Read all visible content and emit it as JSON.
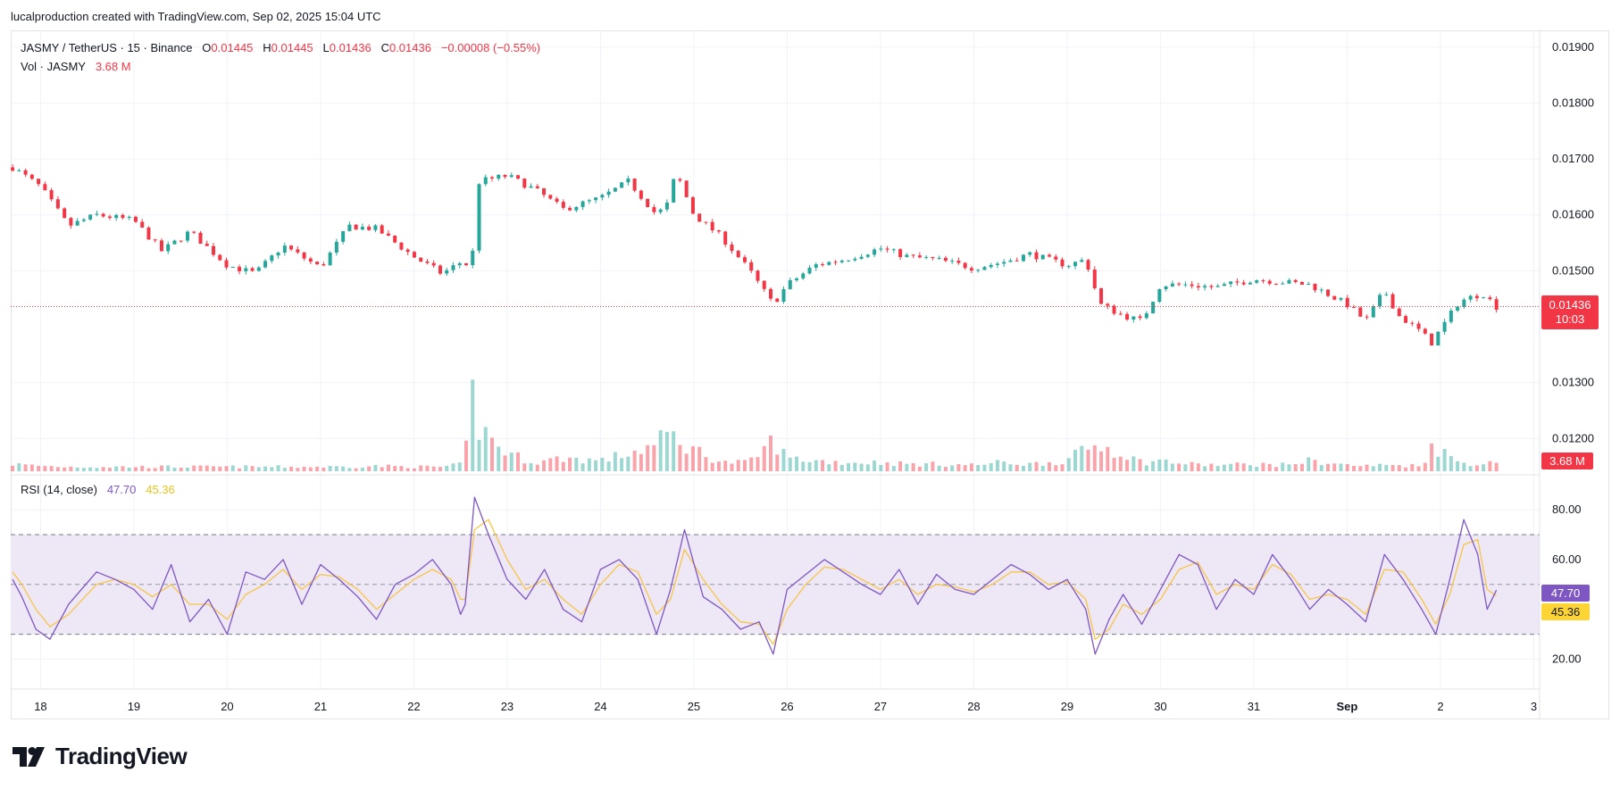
{
  "header": {
    "caption": "lucalproduction created with TradingView.com, Sep 02, 2025 15:04 UTC"
  },
  "legend": {
    "symbol": "JASMY / TetherUS · 15 · Binance",
    "o_label": "O",
    "o_value": "0.01445",
    "h_label": "H",
    "h_value": "0.01445",
    "l_label": "L",
    "l_value": "0.01436",
    "c_label": "C",
    "c_value": "0.01436",
    "change": "−0.00008 (−0.55%)",
    "vol_label": "Vol · JASMY",
    "vol_value": "3.68 M",
    "rsi_label": "RSI (14, close)",
    "rsi_value": "47.70",
    "rsi_ma_value": "45.36"
  },
  "badges": {
    "last_price": "0.01436",
    "countdown": "10:03",
    "volume": "3.68 M",
    "rsi": "47.70",
    "rsi_ma": "45.36"
  },
  "colors": {
    "up": "#26a69a",
    "down": "#f23645",
    "rsi_line": "#7e57c2",
    "rsi_ma": "#f7c548",
    "rsi_band": "#ede7f6",
    "grid": "#f0f3fa"
  },
  "brand": {
    "name": "TradingView",
    "icon": "tradingview-logo-icon"
  },
  "chart_data": [
    {
      "type": "candlestick",
      "title": "JASMY / TetherUS · 15 · Binance",
      "x_tick_labels": [
        "18",
        "19",
        "20",
        "21",
        "22",
        "23",
        "24",
        "25",
        "26",
        "27",
        "28",
        "29",
        "30",
        "31",
        "Sep",
        "2",
        "3"
      ],
      "y_tick_labels": [
        "0.01900",
        "0.01800",
        "0.01700",
        "0.01600",
        "0.01500",
        "0.01300",
        "0.01200"
      ],
      "y_ticks": [
        0.019,
        0.018,
        0.017,
        0.016,
        0.015,
        0.013,
        0.012
      ],
      "ylim": [
        0.01135,
        0.0193
      ],
      "last_price": 0.01436,
      "x_days": [
        17.7,
        18,
        18.3,
        18.6,
        19,
        19.3,
        19.6,
        20,
        20.3,
        20.6,
        21,
        21.3,
        21.6,
        22,
        22.3,
        22.55,
        22.6,
        22.7,
        23,
        23.3,
        23.6,
        24,
        24.3,
        24.6,
        24.75,
        24.8,
        25,
        25.3,
        25.6,
        25.85,
        26,
        26.3,
        26.6,
        27,
        27.3,
        27.6,
        28,
        28.3,
        28.6,
        29,
        29.2,
        29.35,
        29.6,
        29.8,
        30,
        30.3,
        30.6,
        31,
        31.3,
        31.6,
        32,
        32.2,
        32.4,
        32.55,
        32.8,
        32.9,
        33.2,
        33.45,
        33.6
      ],
      "close": [
        0.01685,
        0.0165,
        0.0158,
        0.016,
        0.0159,
        0.01535,
        0.0157,
        0.0151,
        0.01495,
        0.01545,
        0.01505,
        0.0158,
        0.01575,
        0.01525,
        0.01495,
        0.0152,
        0.0148,
        0.0166,
        0.0167,
        0.01645,
        0.0161,
        0.0163,
        0.0166,
        0.016,
        0.01625,
        0.0168,
        0.016,
        0.0156,
        0.015,
        0.0144,
        0.01475,
        0.0151,
        0.0152,
        0.0154,
        0.01525,
        0.0152,
        0.01505,
        0.01515,
        0.0153,
        0.0151,
        0.0152,
        0.0144,
        0.0142,
        0.0141,
        0.01475,
        0.01475,
        0.0147,
        0.01485,
        0.0148,
        0.01475,
        0.0144,
        0.0141,
        0.01465,
        0.0142,
        0.0139,
        0.0137,
        0.01445,
        0.0146,
        0.01436
      ],
      "volume_relative": [
        0.08,
        0.06,
        0.05,
        0.05,
        0.05,
        0.05,
        0.05,
        0.05,
        0.05,
        0.05,
        0.05,
        0.05,
        0.06,
        0.05,
        0.05,
        0.08,
        1.0,
        0.5,
        0.2,
        0.1,
        0.15,
        0.12,
        0.2,
        0.3,
        0.45,
        0.35,
        0.25,
        0.1,
        0.1,
        0.35,
        0.15,
        0.12,
        0.1,
        0.1,
        0.08,
        0.08,
        0.07,
        0.1,
        0.08,
        0.12,
        0.25,
        0.3,
        0.2,
        0.1,
        0.12,
        0.08,
        0.07,
        0.08,
        0.07,
        0.12,
        0.07,
        0.06,
        0.07,
        0.07,
        0.06,
        0.3,
        0.1,
        0.08,
        0.1
      ]
    },
    {
      "type": "line",
      "title": "RSI (14, close)",
      "y_tick_labels": [
        "80.00",
        "60.00",
        "20.00"
      ],
      "y_ticks": [
        80,
        60,
        20
      ],
      "ylim": [
        8,
        94
      ],
      "bands": [
        30,
        50,
        70
      ],
      "x_days": [
        17.7,
        17.8,
        17.95,
        18.1,
        18.3,
        18.6,
        18.8,
        19,
        19.2,
        19.4,
        19.6,
        19.8,
        20,
        20.2,
        20.4,
        20.6,
        20.8,
        21,
        21.2,
        21.4,
        21.6,
        21.8,
        22,
        22.2,
        22.4,
        22.5,
        22.55,
        22.65,
        22.8,
        23,
        23.2,
        23.4,
        23.6,
        23.8,
        24,
        24.2,
        24.4,
        24.6,
        24.75,
        24.9,
        25.1,
        25.3,
        25.5,
        25.7,
        25.85,
        26,
        26.2,
        26.4,
        26.6,
        26.8,
        27,
        27.2,
        27.4,
        27.6,
        27.8,
        28,
        28.2,
        28.4,
        28.6,
        28.8,
        29,
        29.2,
        29.3,
        29.45,
        29.6,
        29.8,
        30,
        30.2,
        30.4,
        30.6,
        30.8,
        31,
        31.2,
        31.4,
        31.6,
        31.8,
        32,
        32.2,
        32.4,
        32.6,
        32.8,
        32.95,
        33.1,
        33.25,
        33.4,
        33.5,
        33.6
      ],
      "rsi": [
        52,
        45,
        32,
        28,
        42,
        55,
        52,
        48,
        40,
        58,
        35,
        44,
        30,
        55,
        52,
        60,
        42,
        58,
        52,
        45,
        36,
        50,
        54,
        60,
        50,
        38,
        42,
        85,
        70,
        52,
        44,
        56,
        40,
        35,
        56,
        60,
        52,
        30,
        48,
        72,
        45,
        40,
        32,
        35,
        22,
        48,
        54,
        60,
        55,
        50,
        46,
        56,
        42,
        54,
        48,
        46,
        52,
        58,
        54,
        48,
        52,
        40,
        22,
        36,
        46,
        34,
        48,
        62,
        58,
        40,
        52,
        46,
        62,
        52,
        40,
        48,
        42,
        35,
        62,
        52,
        40,
        30,
        52,
        76,
        62,
        40,
        47.7
      ],
      "rsi_ma": [
        55,
        50,
        40,
        33,
        38,
        50,
        52,
        50,
        45,
        50,
        42,
        42,
        36,
        46,
        50,
        56,
        48,
        54,
        53,
        48,
        40,
        46,
        52,
        56,
        52,
        44,
        44,
        72,
        76,
        60,
        48,
        52,
        44,
        38,
        50,
        58,
        55,
        38,
        44,
        64,
        52,
        42,
        35,
        34,
        26,
        40,
        50,
        57,
        56,
        52,
        48,
        52,
        46,
        50,
        49,
        47,
        50,
        55,
        55,
        50,
        51,
        44,
        28,
        32,
        42,
        38,
        44,
        56,
        59,
        46,
        50,
        48,
        58,
        54,
        44,
        46,
        44,
        38,
        56,
        55,
        44,
        34,
        46,
        66,
        68,
        48,
        45.36
      ]
    }
  ]
}
